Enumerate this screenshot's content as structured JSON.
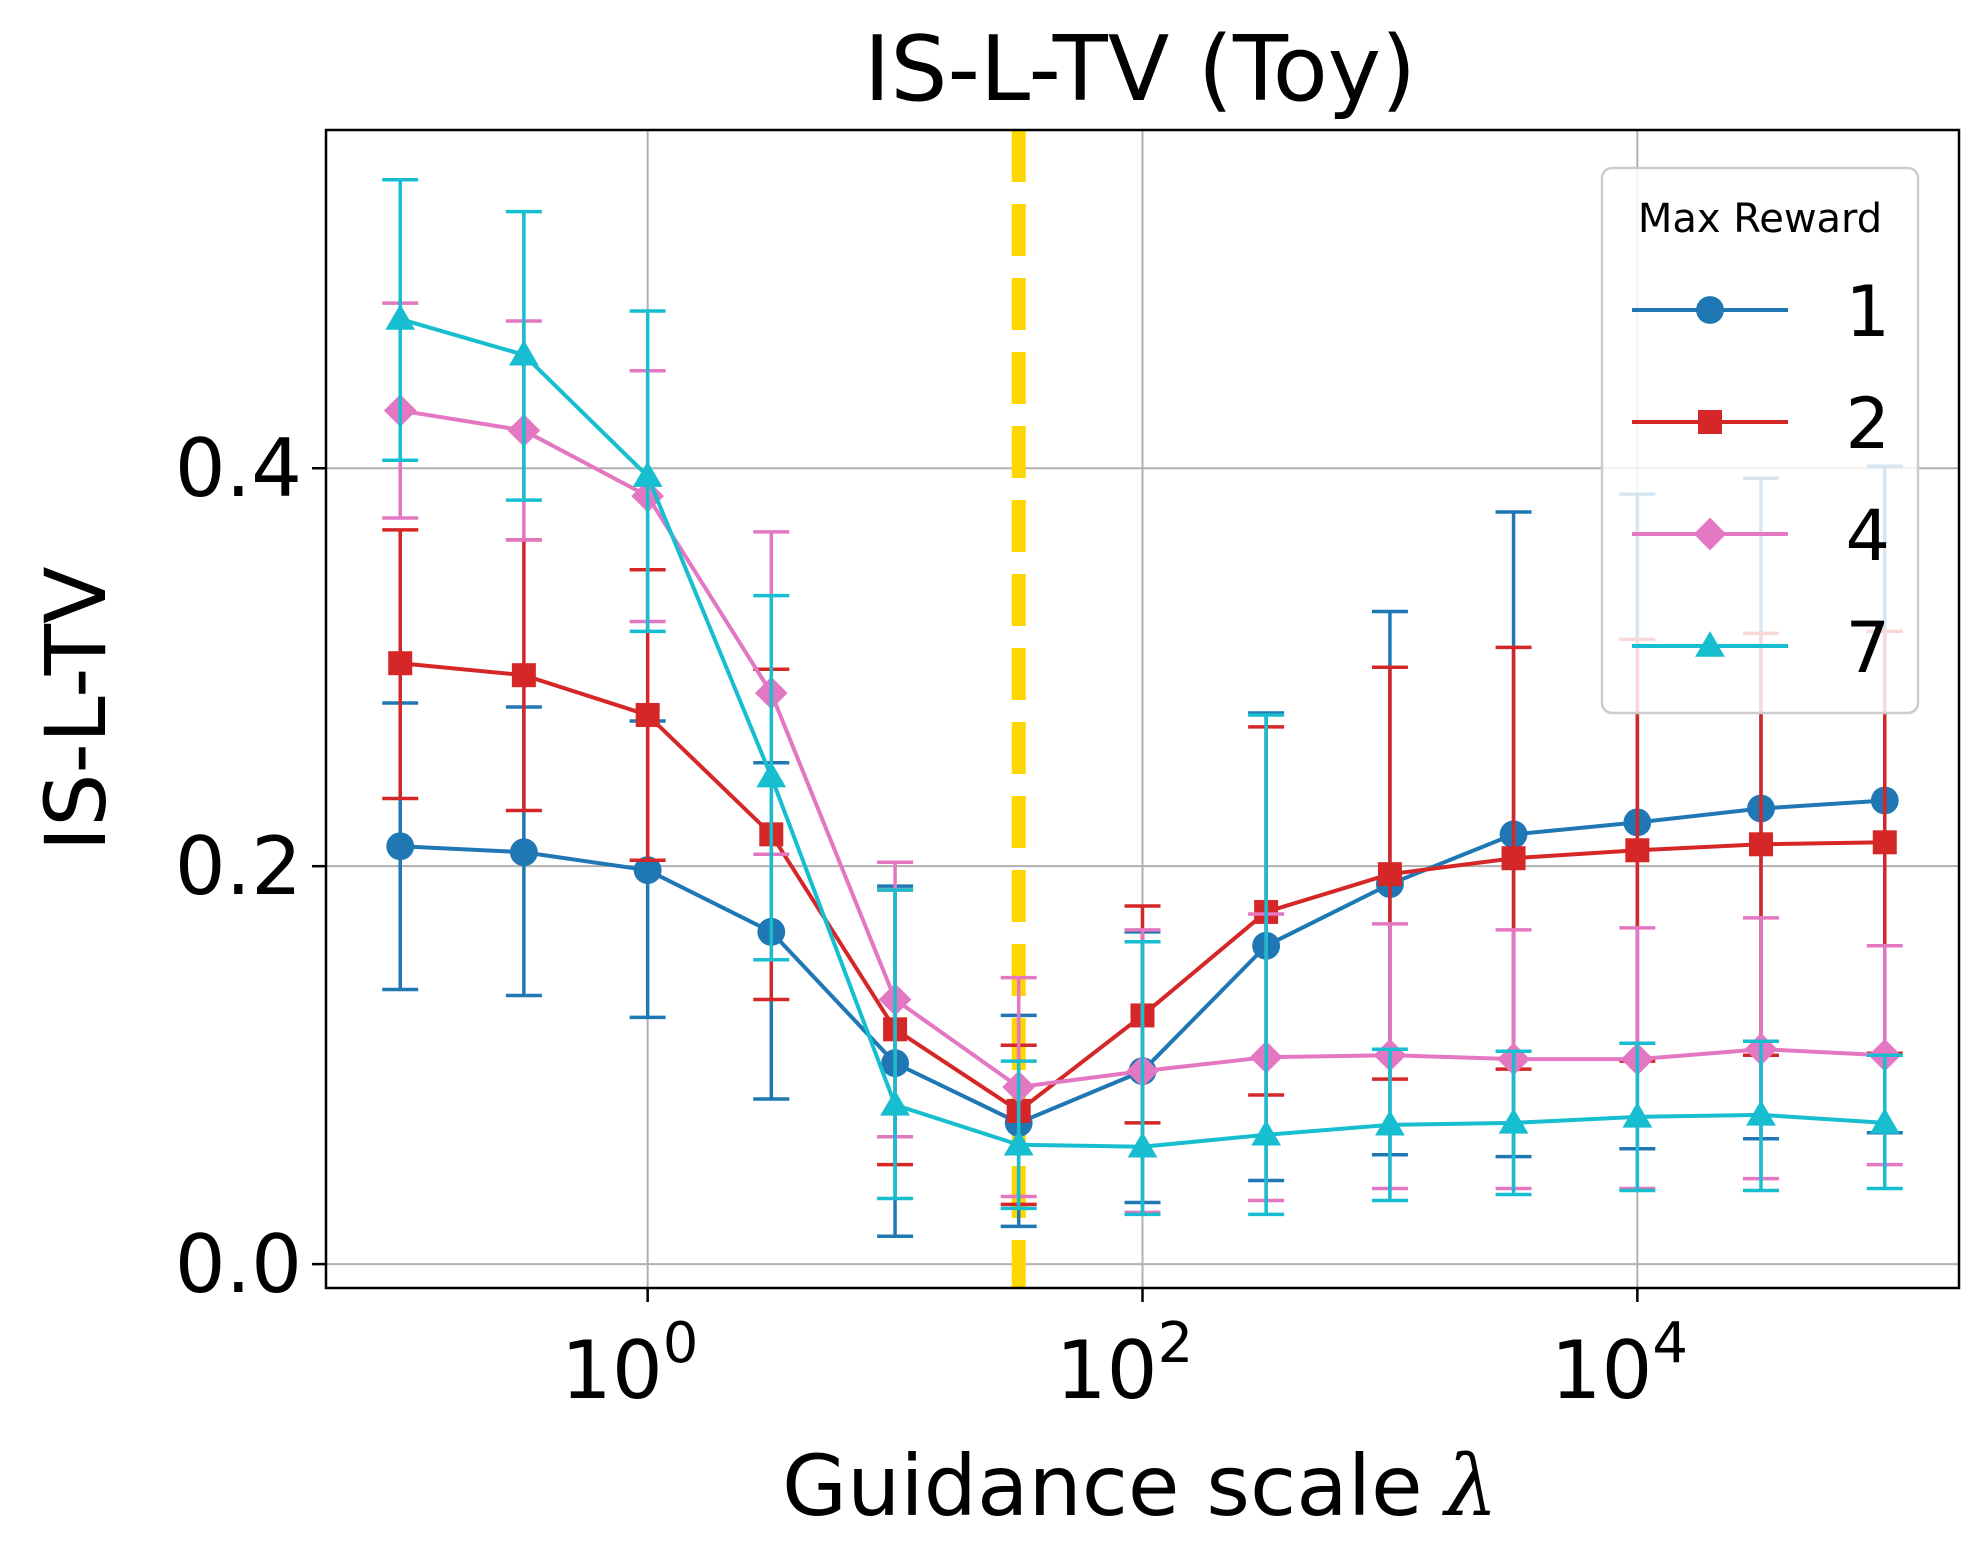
{
  "chart_data": {
    "type": "line",
    "title": "IS-L-TV (Toy)",
    "xlabel": "Guidance scale",
    "xlabel_symbol": "λ",
    "ylabel": "IS-L-TV",
    "xscale": "log",
    "xlim_log10": [
      -1.3,
      5.3
    ],
    "ylim": [
      -0.012,
      0.57
    ],
    "xticks": [
      {
        "value": 1,
        "base": "10",
        "exp": "0"
      },
      {
        "value": 100,
        "base": "10",
        "exp": "2"
      },
      {
        "value": 10000,
        "base": "10",
        "exp": "4"
      }
    ],
    "yticks": [
      {
        "value": 0.0,
        "label": "0.0"
      },
      {
        "value": 0.2,
        "label": "0.2"
      },
      {
        "value": 0.4,
        "label": "0.4"
      }
    ],
    "grid": true,
    "vline": {
      "x": 31.6,
      "color": "#ffd700",
      "style": "dashed"
    },
    "legend": {
      "title": "Max Reward",
      "position": "upper right"
    },
    "x": [
      0.1,
      0.316,
      1,
      3.16,
      10,
      31.6,
      100,
      316,
      1000,
      3160,
      10000,
      31600,
      100000
    ],
    "series": [
      {
        "name": "1",
        "color": "#1f77b4",
        "marker": "circle",
        "values": [
          0.21,
          0.207,
          0.198,
          0.167,
          0.101,
          0.071,
          0.097,
          0.16,
          0.191,
          0.216,
          0.222,
          0.229,
          0.233
        ],
        "err_low": [
          0.138,
          0.135,
          0.124,
          0.083,
          0.014,
          0.019,
          0.031,
          0.042,
          0.055,
          0.054,
          0.058,
          0.063,
          0.066
        ],
        "err_high": [
          0.282,
          0.28,
          0.273,
          0.252,
          0.19,
          0.125,
          0.167,
          0.277,
          0.328,
          0.378,
          0.387,
          0.395,
          0.401
        ]
      },
      {
        "name": "2",
        "color": "#d62728",
        "marker": "square",
        "values": [
          0.302,
          0.296,
          0.276,
          0.216,
          0.118,
          0.077,
          0.125,
          0.177,
          0.196,
          0.204,
          0.208,
          0.211,
          0.212
        ],
        "err_low": [
          0.234,
          0.228,
          0.203,
          0.133,
          0.05,
          0.03,
          0.071,
          0.085,
          0.093,
          0.098,
          0.102,
          0.105,
          0.106
        ],
        "err_high": [
          0.369,
          0.364,
          0.349,
          0.299,
          0.188,
          0.11,
          0.18,
          0.27,
          0.3,
          0.31,
          0.314,
          0.317,
          0.318
        ]
      },
      {
        "name": "4",
        "color": "#e377c2",
        "marker": "diamond",
        "values": [
          0.429,
          0.419,
          0.386,
          0.287,
          0.133,
          0.089,
          0.097,
          0.104,
          0.105,
          0.103,
          0.103,
          0.108,
          0.105
        ],
        "err_low": [
          0.375,
          0.364,
          0.323,
          0.206,
          0.064,
          0.034,
          0.026,
          0.032,
          0.038,
          0.038,
          0.038,
          0.043,
          0.05
        ],
        "err_high": [
          0.483,
          0.474,
          0.449,
          0.368,
          0.202,
          0.144,
          0.168,
          0.176,
          0.171,
          0.168,
          0.169,
          0.174,
          0.16
        ]
      },
      {
        "name": "7",
        "color": "#17becf",
        "marker": "triangle",
        "values": [
          0.475,
          0.457,
          0.396,
          0.245,
          0.08,
          0.06,
          0.059,
          0.065,
          0.07,
          0.071,
          0.074,
          0.075,
          0.071
        ],
        "err_low": [
          0.404,
          0.384,
          0.318,
          0.153,
          0.033,
          0.028,
          0.025,
          0.025,
          0.032,
          0.035,
          0.037,
          0.037,
          0.038
        ],
        "err_high": [
          0.545,
          0.529,
          0.479,
          0.336,
          0.188,
          0.102,
          0.162,
          0.276,
          0.108,
          0.107,
          0.111,
          0.112,
          0.105
        ]
      }
    ]
  }
}
